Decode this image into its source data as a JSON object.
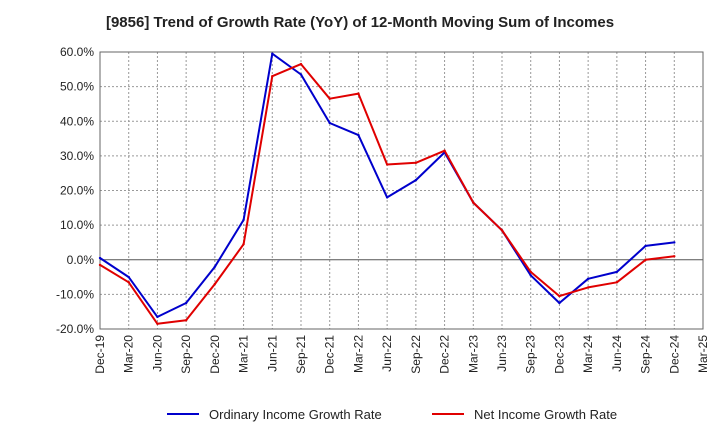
{
  "chart_data": {
    "type": "line",
    "title": "[9856]  Trend of Growth Rate (YoY) of 12-Month Moving Sum of Incomes",
    "xlabel": "",
    "ylabel": "",
    "ylim": [
      -20,
      60
    ],
    "y_ticks": [
      "60.0%",
      "50.0%",
      "40.0%",
      "30.0%",
      "20.0%",
      "10.0%",
      "0.0%",
      "-10.0%",
      "-20.0%"
    ],
    "y_tick_values": [
      60,
      50,
      40,
      30,
      20,
      10,
      0,
      -10,
      -20
    ],
    "x_tick_labels": [
      "Dec-19",
      "Mar-20",
      "Jun-20",
      "Sep-20",
      "Dec-20",
      "Mar-21",
      "Jun-21",
      "Sep-21",
      "Dec-21",
      "Mar-22",
      "Jun-22",
      "Sep-22",
      "Dec-22",
      "Mar-23",
      "Jun-23",
      "Sep-23",
      "Dec-23",
      "Mar-24",
      "Jun-24",
      "Sep-24",
      "Dec-24",
      "Mar-25"
    ],
    "grid": true,
    "legend_position": "bottom",
    "series": [
      {
        "name": "Ordinary Income Growth Rate",
        "color": "#0000cc",
        "values": [
          0.5,
          -5.0,
          -16.5,
          -12.5,
          -2.0,
          11.5,
          59.5,
          53.5,
          39.5,
          36.0,
          18.0,
          23.0,
          31.0,
          16.5,
          8.5,
          -4.5,
          -12.5,
          -5.5,
          -3.5,
          4.0,
          5.0
        ]
      },
      {
        "name": "Net Income Growth Rate",
        "color": "#e00000",
        "values": [
          -1.5,
          -6.5,
          -18.5,
          -17.5,
          -7.0,
          4.5,
          53.0,
          56.5,
          46.5,
          48.0,
          27.5,
          28.0,
          31.5,
          16.5,
          8.5,
          -3.5,
          -10.5,
          -8.0,
          -6.5,
          0.0,
          1.0
        ]
      }
    ]
  }
}
